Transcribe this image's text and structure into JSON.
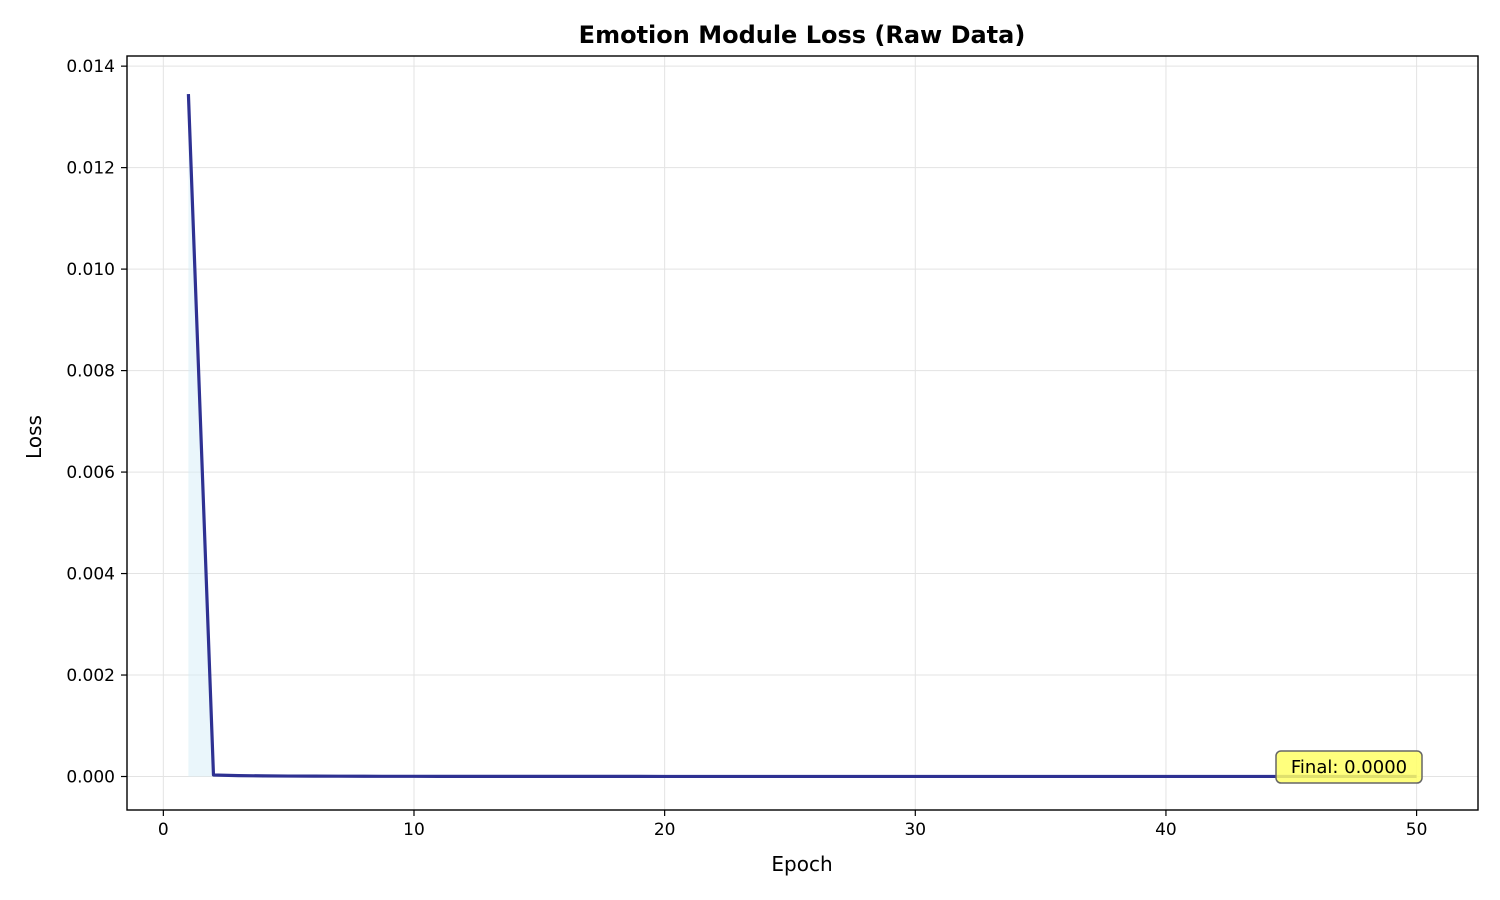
{
  "chart_data": {
    "type": "line",
    "title": "Emotion Module Loss (Raw Data)",
    "xlabel": "Epoch",
    "ylabel": "Loss",
    "xlim": [
      -1.45,
      52.45
    ],
    "ylim": [
      -0.00066,
      0.0142
    ],
    "x_ticks": [
      0,
      10,
      20,
      30,
      40,
      50
    ],
    "x_tick_labels": [
      "0",
      "10",
      "20",
      "30",
      "40",
      "50"
    ],
    "y_ticks": [
      0.0,
      0.002,
      0.004,
      0.006,
      0.008,
      0.01,
      0.012,
      0.014
    ],
    "y_tick_labels": [
      "0.000",
      "0.002",
      "0.004",
      "0.006",
      "0.008",
      "0.010",
      "0.012",
      "0.014"
    ],
    "grid": true,
    "series": [
      {
        "color": "#2e3192",
        "fill_color": "#d6eef8",
        "x": [
          1,
          2,
          3,
          4,
          5,
          6,
          7,
          8,
          9,
          10,
          11,
          12,
          13,
          14,
          15,
          16,
          17,
          18,
          19,
          20,
          21,
          22,
          23,
          24,
          25,
          26,
          27,
          28,
          29,
          30,
          31,
          32,
          33,
          34,
          35,
          36,
          37,
          38,
          39,
          40,
          41,
          42,
          43,
          44,
          45,
          46,
          47,
          48,
          49,
          50
        ],
        "values": [
          0.01345,
          3e-05,
          1.8e-05,
          1.2e-05,
          9e-06,
          7e-06,
          6e-06,
          5e-06,
          4e-06,
          4e-06,
          3e-06,
          3e-06,
          3e-06,
          2e-06,
          2e-06,
          2e-06,
          2e-06,
          2e-06,
          2e-06,
          1e-06,
          1e-06,
          1e-06,
          1e-06,
          1e-06,
          1e-06,
          1e-06,
          1e-06,
          1e-06,
          1e-06,
          1e-06,
          1e-06,
          1e-06,
          1e-06,
          1e-06,
          1e-06,
          1e-06,
          1e-06,
          1e-06,
          1e-06,
          1e-06,
          1e-06,
          1e-06,
          1e-06,
          1e-06,
          1e-06,
          1e-06,
          1e-06,
          1e-06,
          1e-06,
          1e-06
        ]
      }
    ],
    "annotation": {
      "text": "Final: 0.0000",
      "background": "#ffff66",
      "placement": "bottom-right"
    }
  }
}
